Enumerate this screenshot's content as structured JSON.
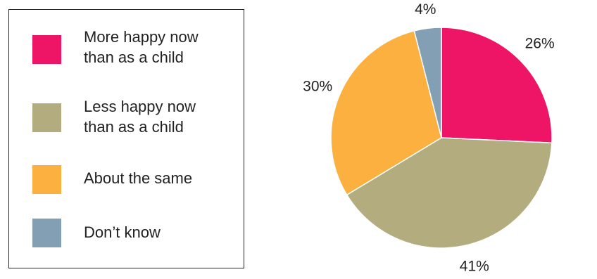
{
  "legend": {
    "items": [
      {
        "lines": [
          "More happy now",
          "than as a child"
        ],
        "color": "#EE1566"
      },
      {
        "lines": [
          "Less happy now",
          "than as a child"
        ],
        "color": "#B3AC7F"
      },
      {
        "lines": [
          "About the same"
        ],
        "color": "#FBB040"
      },
      {
        "lines": [
          "Don’t know"
        ],
        "color": "#829FB3"
      }
    ]
  },
  "chart_data": {
    "type": "pie",
    "title": "",
    "legend_placement": "left",
    "slices": [
      {
        "name": "More happy now than as a child",
        "value": 26,
        "label": "26%",
        "color": "#EE1566"
      },
      {
        "name": "Less happy now than as a child",
        "value": 41,
        "label": "41%",
        "color": "#B3AC7F"
      },
      {
        "name": "About the same",
        "value": 30,
        "label": "30%",
        "color": "#FBB040"
      },
      {
        "name": "Don’t know",
        "value": 4,
        "label": "4%",
        "color": "#829FB3"
      }
    ]
  }
}
